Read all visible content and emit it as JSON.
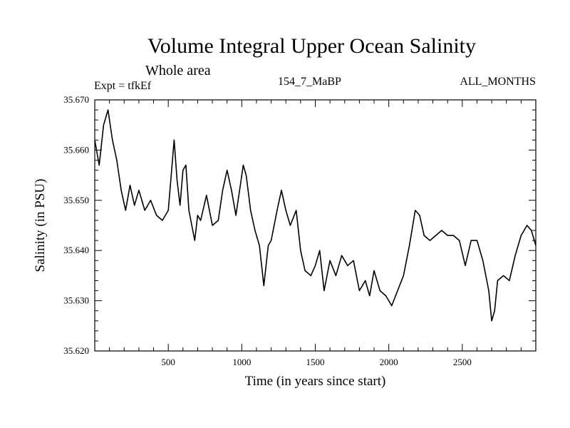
{
  "chart_data": {
    "type": "line",
    "title": "Volume Integral Upper Ocean Salinity",
    "subtitle": "Whole area",
    "annotations": {
      "experiment": "Expt = tfkEf",
      "run_label": "154_7_MaBP",
      "period": "ALL_MONTHS"
    },
    "xlabel": "Time (in years since start)",
    "ylabel": "Salinity (in PSU)",
    "xlim": [
      0,
      3000
    ],
    "ylim": [
      35.62,
      35.67
    ],
    "x_ticks": [
      500,
      1000,
      1500,
      2000,
      2500
    ],
    "x_tick_labels": [
      "500",
      "1000",
      "1500",
      "2000",
      "2500"
    ],
    "y_ticks": [
      35.62,
      35.63,
      35.64,
      35.65,
      35.66,
      35.67
    ],
    "y_tick_labels": [
      "35.620",
      "35.630",
      "35.640",
      "35.650",
      "35.660",
      "35.670"
    ],
    "grid": false,
    "legend": "none",
    "line_color": "#000000",
    "series": [
      {
        "x": [
          0,
          30,
          60,
          90,
          120,
          150,
          180,
          210,
          240,
          270,
          300,
          340,
          380,
          420,
          460,
          500,
          520,
          540,
          560,
          580,
          600,
          620,
          640,
          680,
          700,
          720,
          760,
          800,
          840,
          870,
          900,
          930,
          960,
          990,
          1010,
          1030,
          1060,
          1090,
          1120,
          1150,
          1180,
          1200,
          1240,
          1270,
          1300,
          1330,
          1370,
          1400,
          1430,
          1470,
          1500,
          1530,
          1560,
          1600,
          1640,
          1680,
          1720,
          1760,
          1800,
          1840,
          1870,
          1900,
          1940,
          1980,
          2020,
          2060,
          2100,
          2140,
          2180,
          2210,
          2240,
          2280,
          2320,
          2360,
          2400,
          2440,
          2480,
          2520,
          2560,
          2600,
          2640,
          2680,
          2700,
          2720,
          2740,
          2780,
          2820,
          2860,
          2900,
          2940,
          2970,
          3000
        ],
        "y": [
          35.662,
          35.657,
          35.665,
          35.668,
          35.662,
          35.658,
          35.652,
          35.648,
          35.653,
          35.649,
          35.652,
          35.648,
          35.65,
          35.647,
          35.646,
          35.648,
          35.655,
          35.662,
          35.654,
          35.649,
          35.656,
          35.657,
          35.648,
          35.642,
          35.647,
          35.646,
          35.651,
          35.645,
          35.646,
          35.652,
          35.656,
          35.652,
          35.647,
          35.653,
          35.657,
          35.655,
          35.648,
          35.644,
          35.641,
          35.633,
          35.641,
          35.642,
          35.648,
          35.652,
          35.648,
          35.645,
          35.648,
          35.64,
          35.636,
          35.635,
          35.637,
          35.64,
          35.632,
          35.638,
          35.635,
          35.639,
          35.637,
          35.638,
          35.632,
          35.634,
          35.631,
          35.636,
          35.632,
          35.631,
          35.629,
          35.632,
          35.635,
          35.641,
          35.648,
          35.647,
          35.643,
          35.642,
          35.643,
          35.644,
          35.643,
          35.643,
          35.642,
          35.637,
          35.642,
          35.642,
          35.638,
          35.632,
          35.626,
          35.628,
          35.634,
          35.635,
          35.634,
          35.639,
          35.643,
          35.645,
          35.644,
          35.641
        ]
      }
    ]
  }
}
